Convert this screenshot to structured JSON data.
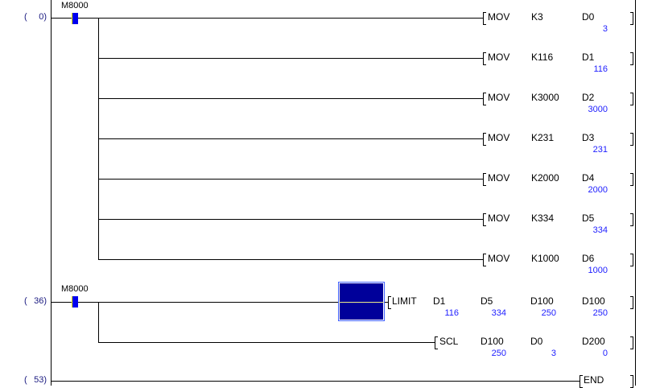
{
  "rungs": [
    {
      "step": "0",
      "contact": "M8000",
      "y": 22,
      "branch_end": 323,
      "instructions": [
        {
          "op": "MOV",
          "operands": [
            {
              "name": "K3"
            },
            {
              "name": "D0",
              "value": "3"
            }
          ]
        },
        {
          "op": "MOV",
          "operands": [
            {
              "name": "K116"
            },
            {
              "name": "D1",
              "value": "116"
            }
          ]
        },
        {
          "op": "MOV",
          "operands": [
            {
              "name": "K3000"
            },
            {
              "name": "D2",
              "value": "3000"
            }
          ]
        },
        {
          "op": "MOV",
          "operands": [
            {
              "name": "K231"
            },
            {
              "name": "D3",
              "value": "231"
            }
          ]
        },
        {
          "op": "MOV",
          "operands": [
            {
              "name": "K2000"
            },
            {
              "name": "D4",
              "value": "2000"
            }
          ]
        },
        {
          "op": "MOV",
          "operands": [
            {
              "name": "K334"
            },
            {
              "name": "D5",
              "value": "334"
            }
          ]
        },
        {
          "op": "MOV",
          "operands": [
            {
              "name": "K1000"
            },
            {
              "name": "D6",
              "value": "1000"
            }
          ]
        }
      ]
    },
    {
      "step": "36",
      "contact": "M8000",
      "instructions": [
        {
          "op": "LIMIT",
          "operands": [
            {
              "name": "D1",
              "value": "116"
            },
            {
              "name": "D5",
              "value": "334"
            },
            {
              "name": "D100",
              "value": "250"
            },
            {
              "name": "D100",
              "value": "250"
            }
          ]
        },
        {
          "op": "SCL",
          "operands": [
            {
              "name": "D100",
              "value": "250"
            },
            {
              "name": "D0",
              "value": "3"
            },
            {
              "name": "D200",
              "value": "0"
            }
          ]
        }
      ]
    },
    {
      "step": "53",
      "instructions": [
        {
          "op": "END",
          "operands": []
        }
      ]
    }
  ],
  "colors": {
    "contact": "#0000ee",
    "value": "#2020ff",
    "cursor": "#00009a"
  }
}
